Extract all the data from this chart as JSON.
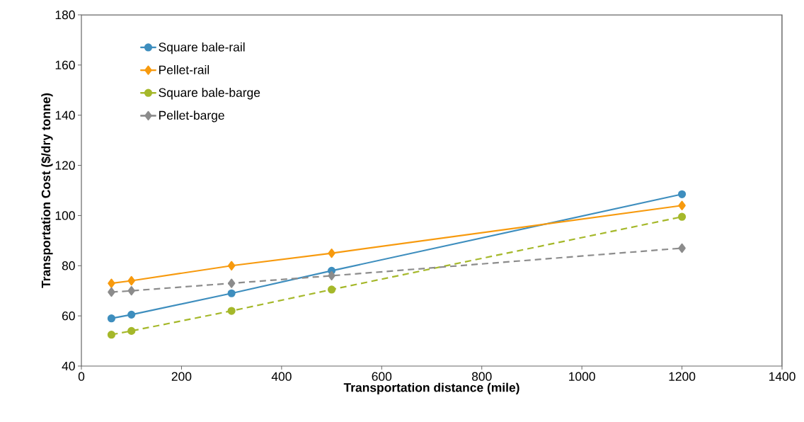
{
  "chart_data": {
    "type": "line",
    "xlabel": "Transportation distance (mile)",
    "ylabel": "Transportation Cost ($/dry tonne)",
    "x": [
      60,
      100,
      300,
      500,
      1200
    ],
    "series": [
      {
        "name": "Square bale-rail",
        "color": "#3e8ebe",
        "marker": "circle",
        "line_style": "solid",
        "values": [
          59,
          60.5,
          69,
          78,
          108.5
        ]
      },
      {
        "name": "Pellet-rail",
        "color": "#f79a0e",
        "marker": "diamond",
        "line_style": "solid",
        "values": [
          73,
          74,
          80,
          85,
          104
        ]
      },
      {
        "name": "Square bale-barge",
        "color": "#a5b82a",
        "marker": "circle",
        "line_style": "dashed",
        "values": [
          52.5,
          54,
          62,
          70.5,
          99.5
        ]
      },
      {
        "name": "Pellet-barge",
        "color": "#8c8c8c",
        "marker": "diamond",
        "line_style": "dashed",
        "values": [
          69.5,
          70,
          73,
          76,
          87
        ]
      }
    ],
    "xlim": [
      0,
      1400
    ],
    "ylim": [
      40,
      180
    ],
    "xticks": [
      0,
      200,
      400,
      600,
      800,
      1000,
      1200,
      1400
    ],
    "yticks": [
      40,
      60,
      80,
      100,
      120,
      140,
      160,
      180
    ],
    "grid": false,
    "legend": "top left"
  }
}
